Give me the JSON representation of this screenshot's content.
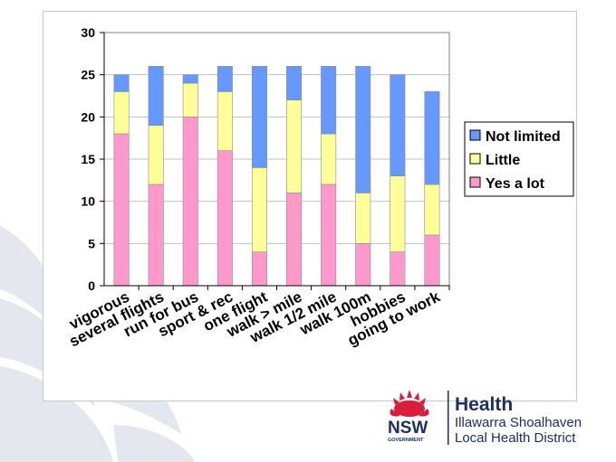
{
  "colors": {
    "yes_a_lot": "#ff99cc",
    "little": "#ffff99",
    "not_limited": "#6699ff",
    "brand": "#1d2f63",
    "waratah": "#d71e3c"
  },
  "chart_data": {
    "type": "bar",
    "stacked": true,
    "categories": [
      "vigorous",
      "several flights",
      "run for bus",
      "sport & rec",
      "one flight",
      "walk > mile",
      "walk 1/2 mile",
      "walk 100m",
      "hobbies",
      "going to work"
    ],
    "series": [
      {
        "name": "Yes a lot",
        "values": [
          18,
          12,
          20,
          16,
          4,
          11,
          12,
          5,
          4,
          6
        ]
      },
      {
        "name": "Little",
        "values": [
          5,
          7,
          4,
          7,
          10,
          11,
          6,
          6,
          9,
          6
        ]
      },
      {
        "name": "Not limited",
        "values": [
          2,
          7,
          1,
          3,
          12,
          4,
          8,
          15,
          12,
          11
        ]
      }
    ],
    "legend_order": [
      "Not limited",
      "Little",
      "Yes a lot"
    ],
    "yticks": [
      0,
      5,
      10,
      15,
      20,
      25,
      30
    ],
    "ylim": [
      0,
      30
    ],
    "title": "",
    "xlabel": "",
    "ylabel": "",
    "legend_position": "right"
  },
  "logo": {
    "nsw": "NSW",
    "government": "GOVERNMENT",
    "health": "Health",
    "district_line1": "Illawarra Shoalhaven",
    "district_line2": "Local Health District"
  }
}
